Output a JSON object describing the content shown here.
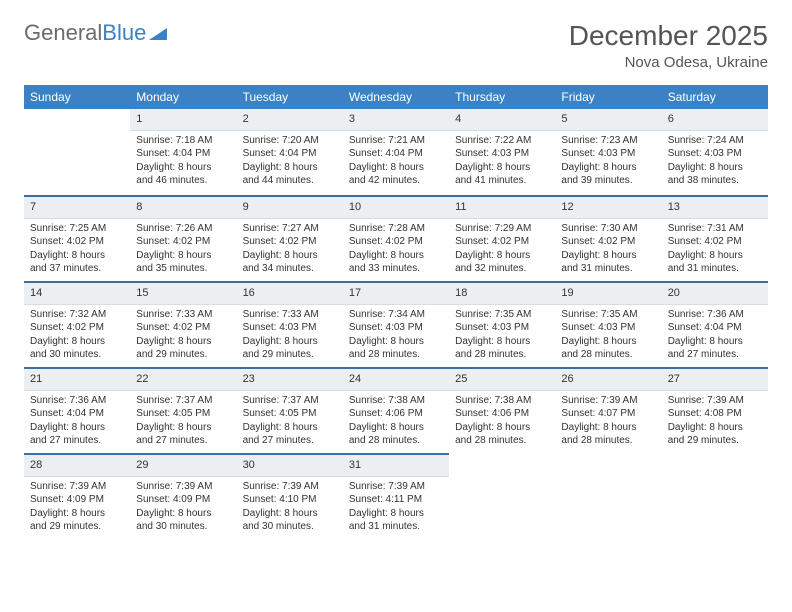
{
  "logo": {
    "text1": "General",
    "text2": "Blue"
  },
  "title": "December 2025",
  "location": "Nova Odesa, Ukraine",
  "colors": {
    "header_bg": "#3b82c4",
    "header_text": "#ffffff",
    "daynum_bg": "#eceff1",
    "row_divider": "#3b6fa0",
    "text": "#333333",
    "logo_gray": "#6b6b6b",
    "logo_blue": "#3b82c4",
    "background": "#ffffff"
  },
  "typography": {
    "title_fontsize": 28,
    "location_fontsize": 15,
    "header_fontsize": 12,
    "daynum_fontsize": 11,
    "body_fontsize": 10
  },
  "weekdays": [
    "Sunday",
    "Monday",
    "Tuesday",
    "Wednesday",
    "Thursday",
    "Friday",
    "Saturday"
  ],
  "weeks": [
    [
      {
        "n": "",
        "sr": "",
        "ss": "",
        "dl": ""
      },
      {
        "n": "1",
        "sr": "Sunrise: 7:18 AM",
        "ss": "Sunset: 4:04 PM",
        "dl": "Daylight: 8 hours and 46 minutes."
      },
      {
        "n": "2",
        "sr": "Sunrise: 7:20 AM",
        "ss": "Sunset: 4:04 PM",
        "dl": "Daylight: 8 hours and 44 minutes."
      },
      {
        "n": "3",
        "sr": "Sunrise: 7:21 AM",
        "ss": "Sunset: 4:04 PM",
        "dl": "Daylight: 8 hours and 42 minutes."
      },
      {
        "n": "4",
        "sr": "Sunrise: 7:22 AM",
        "ss": "Sunset: 4:03 PM",
        "dl": "Daylight: 8 hours and 41 minutes."
      },
      {
        "n": "5",
        "sr": "Sunrise: 7:23 AM",
        "ss": "Sunset: 4:03 PM",
        "dl": "Daylight: 8 hours and 39 minutes."
      },
      {
        "n": "6",
        "sr": "Sunrise: 7:24 AM",
        "ss": "Sunset: 4:03 PM",
        "dl": "Daylight: 8 hours and 38 minutes."
      }
    ],
    [
      {
        "n": "7",
        "sr": "Sunrise: 7:25 AM",
        "ss": "Sunset: 4:02 PM",
        "dl": "Daylight: 8 hours and 37 minutes."
      },
      {
        "n": "8",
        "sr": "Sunrise: 7:26 AM",
        "ss": "Sunset: 4:02 PM",
        "dl": "Daylight: 8 hours and 35 minutes."
      },
      {
        "n": "9",
        "sr": "Sunrise: 7:27 AM",
        "ss": "Sunset: 4:02 PM",
        "dl": "Daylight: 8 hours and 34 minutes."
      },
      {
        "n": "10",
        "sr": "Sunrise: 7:28 AM",
        "ss": "Sunset: 4:02 PM",
        "dl": "Daylight: 8 hours and 33 minutes."
      },
      {
        "n": "11",
        "sr": "Sunrise: 7:29 AM",
        "ss": "Sunset: 4:02 PM",
        "dl": "Daylight: 8 hours and 32 minutes."
      },
      {
        "n": "12",
        "sr": "Sunrise: 7:30 AM",
        "ss": "Sunset: 4:02 PM",
        "dl": "Daylight: 8 hours and 31 minutes."
      },
      {
        "n": "13",
        "sr": "Sunrise: 7:31 AM",
        "ss": "Sunset: 4:02 PM",
        "dl": "Daylight: 8 hours and 31 minutes."
      }
    ],
    [
      {
        "n": "14",
        "sr": "Sunrise: 7:32 AM",
        "ss": "Sunset: 4:02 PM",
        "dl": "Daylight: 8 hours and 30 minutes."
      },
      {
        "n": "15",
        "sr": "Sunrise: 7:33 AM",
        "ss": "Sunset: 4:02 PM",
        "dl": "Daylight: 8 hours and 29 minutes."
      },
      {
        "n": "16",
        "sr": "Sunrise: 7:33 AM",
        "ss": "Sunset: 4:03 PM",
        "dl": "Daylight: 8 hours and 29 minutes."
      },
      {
        "n": "17",
        "sr": "Sunrise: 7:34 AM",
        "ss": "Sunset: 4:03 PM",
        "dl": "Daylight: 8 hours and 28 minutes."
      },
      {
        "n": "18",
        "sr": "Sunrise: 7:35 AM",
        "ss": "Sunset: 4:03 PM",
        "dl": "Daylight: 8 hours and 28 minutes."
      },
      {
        "n": "19",
        "sr": "Sunrise: 7:35 AM",
        "ss": "Sunset: 4:03 PM",
        "dl": "Daylight: 8 hours and 28 minutes."
      },
      {
        "n": "20",
        "sr": "Sunrise: 7:36 AM",
        "ss": "Sunset: 4:04 PM",
        "dl": "Daylight: 8 hours and 27 minutes."
      }
    ],
    [
      {
        "n": "21",
        "sr": "Sunrise: 7:36 AM",
        "ss": "Sunset: 4:04 PM",
        "dl": "Daylight: 8 hours and 27 minutes."
      },
      {
        "n": "22",
        "sr": "Sunrise: 7:37 AM",
        "ss": "Sunset: 4:05 PM",
        "dl": "Daylight: 8 hours and 27 minutes."
      },
      {
        "n": "23",
        "sr": "Sunrise: 7:37 AM",
        "ss": "Sunset: 4:05 PM",
        "dl": "Daylight: 8 hours and 27 minutes."
      },
      {
        "n": "24",
        "sr": "Sunrise: 7:38 AM",
        "ss": "Sunset: 4:06 PM",
        "dl": "Daylight: 8 hours and 28 minutes."
      },
      {
        "n": "25",
        "sr": "Sunrise: 7:38 AM",
        "ss": "Sunset: 4:06 PM",
        "dl": "Daylight: 8 hours and 28 minutes."
      },
      {
        "n": "26",
        "sr": "Sunrise: 7:39 AM",
        "ss": "Sunset: 4:07 PM",
        "dl": "Daylight: 8 hours and 28 minutes."
      },
      {
        "n": "27",
        "sr": "Sunrise: 7:39 AM",
        "ss": "Sunset: 4:08 PM",
        "dl": "Daylight: 8 hours and 29 minutes."
      }
    ],
    [
      {
        "n": "28",
        "sr": "Sunrise: 7:39 AM",
        "ss": "Sunset: 4:09 PM",
        "dl": "Daylight: 8 hours and 29 minutes."
      },
      {
        "n": "29",
        "sr": "Sunrise: 7:39 AM",
        "ss": "Sunset: 4:09 PM",
        "dl": "Daylight: 8 hours and 30 minutes."
      },
      {
        "n": "30",
        "sr": "Sunrise: 7:39 AM",
        "ss": "Sunset: 4:10 PM",
        "dl": "Daylight: 8 hours and 30 minutes."
      },
      {
        "n": "31",
        "sr": "Sunrise: 7:39 AM",
        "ss": "Sunset: 4:11 PM",
        "dl": "Daylight: 8 hours and 31 minutes."
      },
      {
        "n": "",
        "sr": "",
        "ss": "",
        "dl": ""
      },
      {
        "n": "",
        "sr": "",
        "ss": "",
        "dl": ""
      },
      {
        "n": "",
        "sr": "",
        "ss": "",
        "dl": ""
      }
    ]
  ]
}
